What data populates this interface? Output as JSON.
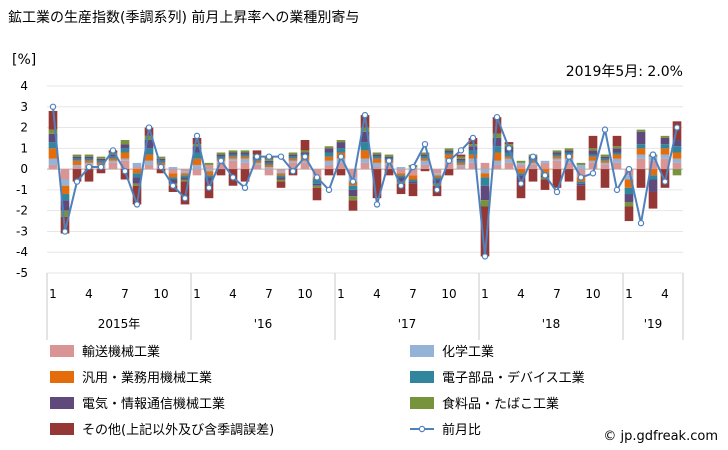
{
  "chart_data": {
    "type": "stacked-bar+line",
    "title": "鉱工業の生産指数(季調系列) 前月上昇率への業種別寄与",
    "ylabel": "[%]",
    "annotation": "2019年5月: 2.0%",
    "source": "© jp.gdfreak.com",
    "ylim": [
      -5,
      4
    ],
    "yticks": [
      -5,
      -4,
      -3,
      -2,
      -1,
      0,
      1,
      2,
      3,
      4
    ],
    "xtick_labels": [
      "1",
      "4",
      "7",
      "10",
      "1",
      "4",
      "7",
      "10",
      "1",
      "4",
      "7",
      "10",
      "1",
      "4",
      "7",
      "10",
      "1",
      "4"
    ],
    "xtick_indices": [
      0,
      3,
      6,
      9,
      12,
      15,
      18,
      21,
      24,
      27,
      30,
      33,
      36,
      39,
      42,
      45,
      48,
      51
    ],
    "year_labels": [
      "2015年",
      "'16",
      "'17",
      "'18",
      "'19"
    ],
    "year_start_indices": [
      0,
      12,
      24,
      36,
      48
    ],
    "year_end_indices": [
      11,
      23,
      35,
      47,
      52
    ],
    "series": [
      {
        "name": "輸送機械工業",
        "color": "#d99594",
        "values": [
          0.2,
          -0.5,
          0.1,
          0.2,
          0.1,
          0.3,
          0.4,
          0.1,
          0.2,
          0.1,
          -0.2,
          -0.1,
          -0.3,
          0.2,
          0.3,
          0.4,
          0.3,
          0.2,
          -0.3,
          -0.1,
          0.3,
          0.3,
          -0.3,
          0.2,
          0.3,
          -0.4,
          0.3,
          0.1,
          0.2,
          -0.2,
          -0.3,
          0.2,
          -0.2,
          0.3,
          0.1,
          0.3,
          0.3,
          0.2,
          0.3,
          0.2,
          0.2,
          0.3,
          0.4,
          0.3,
          -0.4,
          0.3,
          0.2,
          0.3,
          -0.3,
          0.5,
          0.4,
          0.5,
          0.3
        ]
      },
      {
        "name": "化学工業",
        "color": "#95b3d7",
        "values": [
          0.3,
          -0.3,
          0.1,
          0.1,
          0.1,
          0.1,
          0.1,
          0.2,
          0.2,
          0.1,
          0.1,
          -0.1,
          0.2,
          -0.1,
          0.1,
          0.1,
          0.2,
          0.1,
          0.1,
          -0.1,
          0.1,
          0.1,
          -0.1,
          0.2,
          0.2,
          -0.2,
          0.2,
          0.2,
          0.1,
          0.1,
          0.1,
          0.2,
          -0.1,
          0.2,
          0.1,
          0.2,
          -0.2,
          0.2,
          0.2,
          0.1,
          0.1,
          0.1,
          0.1,
          0.2,
          0.2,
          0.1,
          0.1,
          0.2,
          -0.2,
          0.2,
          0.2,
          0.2,
          0.2
        ]
      },
      {
        "name": "汎用・業務用機械工業",
        "color": "#e46c0a",
        "values": [
          0.5,
          -0.4,
          0.2,
          0.1,
          0.1,
          0.1,
          0.3,
          -0.2,
          0.3,
          0.1,
          -0.2,
          -0.1,
          0.3,
          -0.2,
          0.1,
          0.1,
          0.1,
          0.1,
          0.1,
          -0.1,
          0.1,
          0.2,
          -0.1,
          0.2,
          0.3,
          -0.2,
          0.4,
          0.2,
          0.1,
          -0.1,
          -0.2,
          0.1,
          -0.1,
          0.2,
          0.1,
          0.2,
          -0.2,
          0.4,
          0.1,
          -0.2,
          0.1,
          -0.2,
          0.1,
          0.2,
          -0.2,
          0.2,
          0.1,
          0.2,
          -0.4,
          0.3,
          -0.3,
          0.3,
          0.3
        ]
      },
      {
        "name": "電子部品・デバイス工業",
        "color": "#31859c",
        "values": [
          0.3,
          -0.3,
          0.1,
          0.1,
          0.1,
          0.1,
          0.2,
          -0.2,
          0.3,
          0.1,
          -0.1,
          -0.1,
          0.3,
          -0.1,
          0.1,
          0.1,
          0.1,
          0.1,
          0.1,
          -0.1,
          0.1,
          0.1,
          -0.2,
          0.2,
          0.2,
          -0.2,
          0.4,
          0.1,
          0.1,
          -0.1,
          -0.1,
          0.1,
          -0.1,
          0.1,
          0.1,
          0.2,
          -0.4,
          0.3,
          0.2,
          -0.1,
          0.1,
          -0.1,
          0.1,
          0.1,
          -0.1,
          0.1,
          0.1,
          0.1,
          -0.3,
          0.2,
          -0.2,
          0.2,
          0.3
        ]
      },
      {
        "name": "電気・情報通信機械工業",
        "color": "#604a7b",
        "values": [
          0.4,
          -0.5,
          0.1,
          0.1,
          0.1,
          0.1,
          0.2,
          -0.3,
          0.4,
          0.1,
          -0.2,
          -0.1,
          0.3,
          -0.2,
          0.1,
          0.1,
          0.1,
          0.1,
          0.1,
          -0.1,
          0.1,
          0.1,
          -0.1,
          0.2,
          0.3,
          -0.3,
          0.5,
          0.1,
          0.1,
          -0.2,
          -0.1,
          0.1,
          -0.2,
          0.1,
          0.1,
          0.2,
          -0.7,
          0.4,
          0.3,
          -0.2,
          0.1,
          -0.1,
          0.1,
          0.1,
          -0.1,
          0.2,
          0.1,
          0.2,
          -0.4,
          0.6,
          -0.6,
          0.3,
          0.3
        ]
      },
      {
        "name": "食料品・たばこ工業",
        "color": "#77933c",
        "values": [
          0.2,
          -0.3,
          0.1,
          0.1,
          0.1,
          0.1,
          0.2,
          -0.1,
          0.2,
          0.1,
          -0.1,
          -0.1,
          0.1,
          0.1,
          0.1,
          0.1,
          0.1,
          0.1,
          0.1,
          -0.1,
          0.1,
          0.1,
          -0.1,
          0.1,
          0.1,
          -0.2,
          0.2,
          0.1,
          0.1,
          -0.1,
          0.1,
          0.1,
          -0.1,
          0.1,
          0.1,
          0.1,
          -0.3,
          0.2,
          0.1,
          0.1,
          0.1,
          -0.1,
          0.1,
          0.1,
          0.1,
          0.1,
          0.1,
          0.1,
          -0.2,
          0.1,
          0.1,
          0.1,
          -0.3
        ]
      },
      {
        "name": "その他(上記以外及び含季調誤差)",
        "color": "#953735",
        "values": [
          0.9,
          -0.8,
          -0.6,
          -0.6,
          -0.2,
          0.1,
          -0.5,
          -0.9,
          0.4,
          -0.2,
          -0.3,
          -1.1,
          0.3,
          -0.8,
          -0.3,
          -0.8,
          -0.6,
          0.2,
          0.1,
          -0.3,
          -0.3,
          0.5,
          -0.6,
          -0.3,
          -0.3,
          -0.5,
          0.6,
          -1.4,
          -0.3,
          -0.5,
          -0.6,
          -0.1,
          -0.5,
          -0.3,
          0.1,
          0.3,
          -2.4,
          0.8,
          0.1,
          -0.9,
          -0.6,
          -0.5,
          -0.9,
          -0.6,
          -0.7,
          0.6,
          -0.9,
          0.5,
          -0.7,
          -0.9,
          -0.8,
          -0.9,
          0.9
        ]
      }
    ],
    "line": {
      "name": "前月比",
      "color": "#4f81bd",
      "values": [
        3.0,
        -3.0,
        -0.6,
        0.1,
        0.1,
        0.9,
        -0.1,
        -1.7,
        2.0,
        0.1,
        -0.8,
        -1.4,
        1.6,
        -0.9,
        0.4,
        -0.4,
        -0.9,
        0.6,
        0.6,
        0.6,
        -0.1,
        0.6,
        -0.4,
        -1.0,
        0.6,
        -0.6,
        2.6,
        -1.7,
        0.4,
        -0.8,
        0.1,
        1.2,
        -1.0,
        0.4,
        0.9,
        1.5,
        -4.2,
        2.5,
        1.0,
        -0.7,
        0.6,
        -0.3,
        -1.1,
        0.6,
        -0.4,
        -0.2,
        1.9,
        -1.0,
        0.0,
        -2.6,
        0.7,
        -0.6,
        2.0
      ]
    }
  }
}
